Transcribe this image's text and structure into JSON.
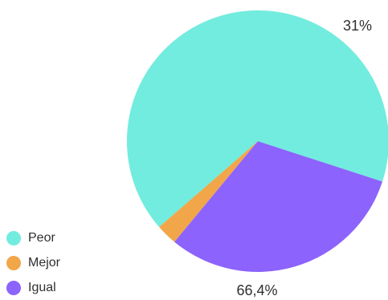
{
  "chart_data": {
    "type": "pie",
    "title": "",
    "start_angle_deg": -18,
    "slices": [
      {
        "label": "Peor",
        "value": 66.4,
        "color": "#72ECDE",
        "value_label": "66,4%"
      },
      {
        "label": "Mejor",
        "value": 2.6,
        "color": "#F2A64A",
        "value_label": ""
      },
      {
        "label": "Igual",
        "value": 31.0,
        "color": "#8C63FC",
        "value_label": "31%"
      }
    ],
    "legend": {
      "placement": "bottom-left",
      "items": [
        {
          "label": "Peor",
          "color": "#72ECDE"
        },
        {
          "label": "Mejor",
          "color": "#F2A64A"
        },
        {
          "label": "Igual",
          "color": "#8C63FC"
        }
      ]
    }
  }
}
